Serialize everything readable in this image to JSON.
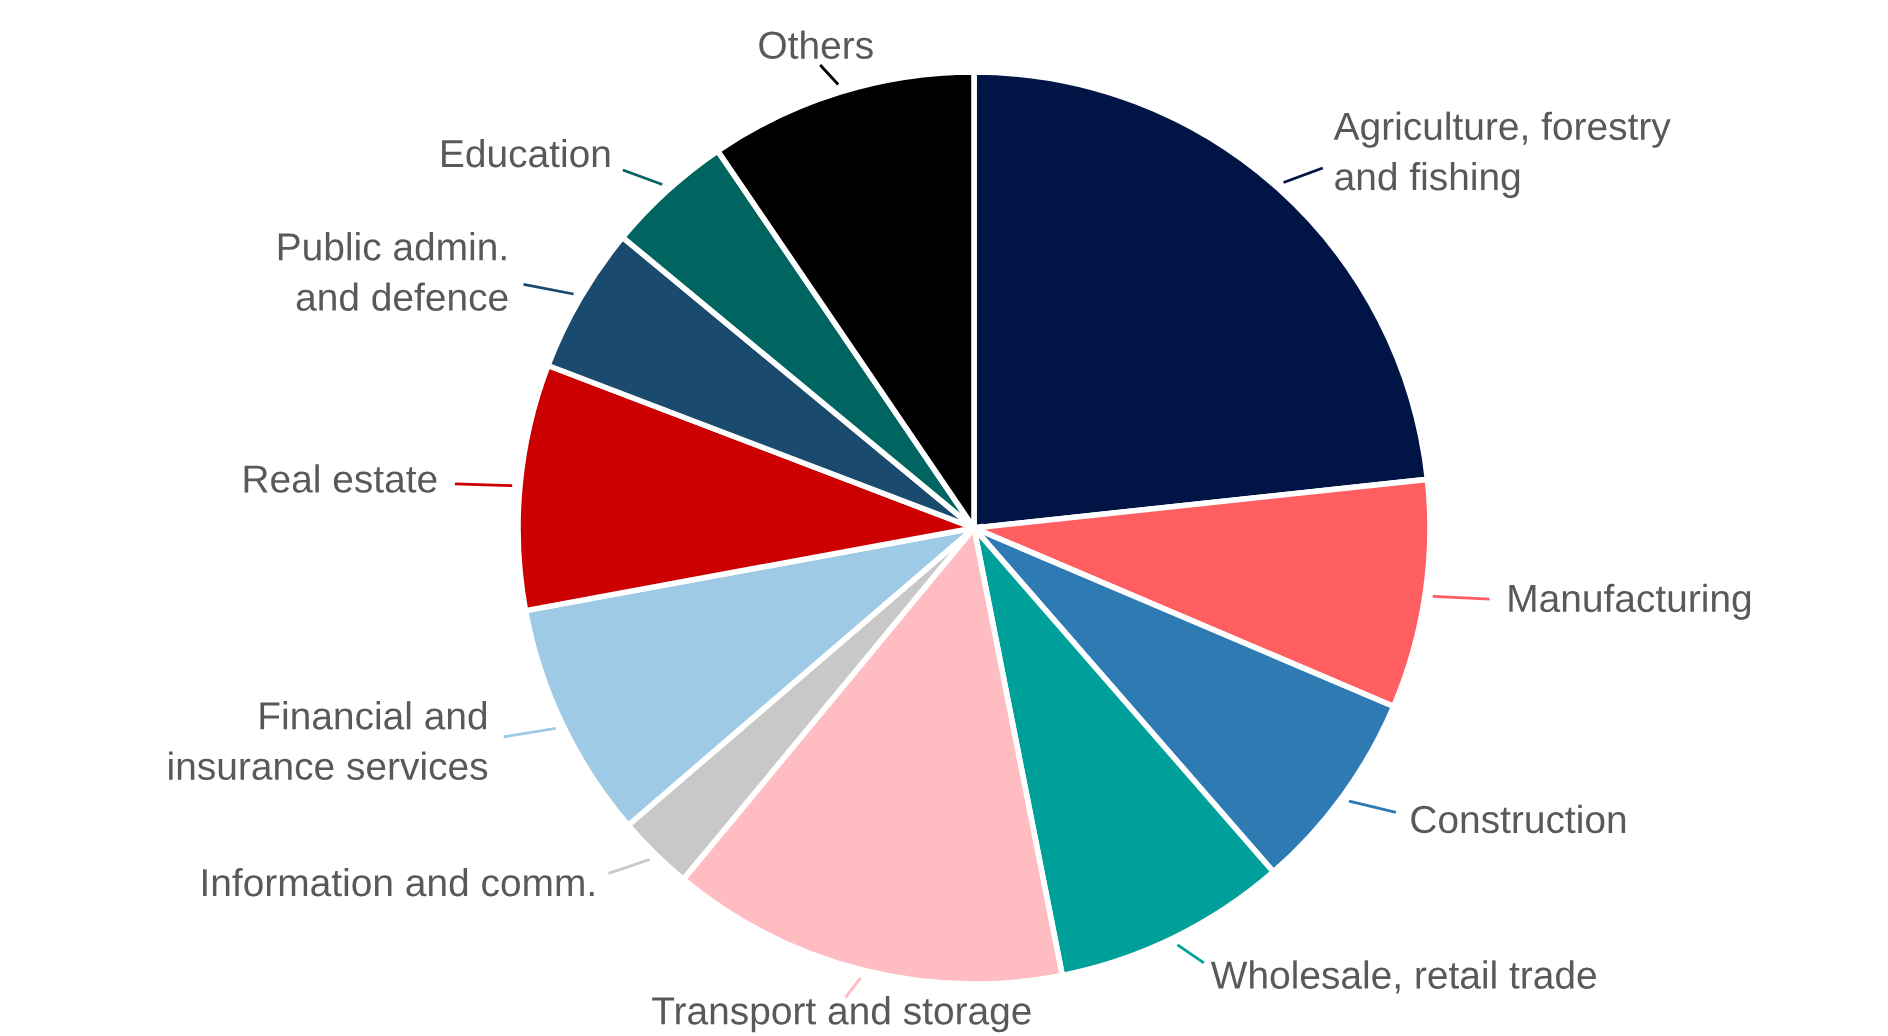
{
  "chart_data": {
    "type": "pie",
    "categories": [
      "Agriculture, forestry\nand fishing",
      "Manufacturing",
      "Construction",
      "Wholesale, retail trade",
      "Transport and storage",
      "Information and comm.",
      "Financial and\ninsurance services",
      "Real estate",
      "Public admin.\nand defence",
      "Education",
      "Others"
    ],
    "values": [
      23.3,
      8.1,
      7.2,
      8.3,
      14.1,
      2.7,
      8.4,
      8.7,
      5.2,
      4.5,
      9.5
    ],
    "colors": [
      "#001446",
      "#ff5f61",
      "#2e7bb4",
      "#00a09a",
      "#ffbdc1",
      "#c8c8c8",
      "#9ecae6",
      "#cc0000",
      "#1a4a6e",
      "#006461",
      "#000000"
    ],
    "legend": false
  }
}
